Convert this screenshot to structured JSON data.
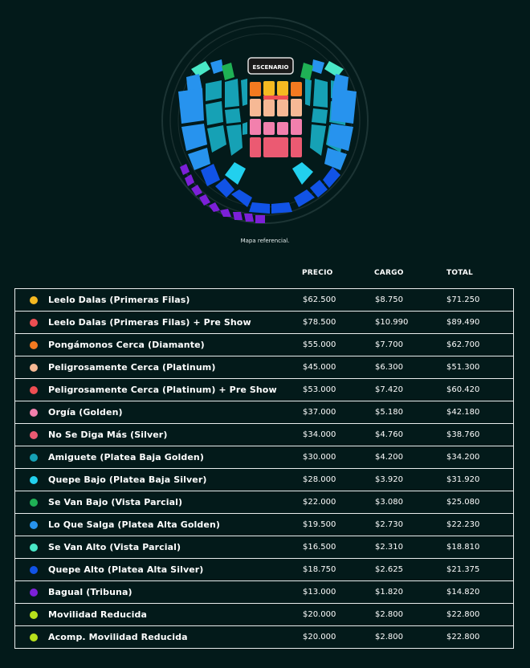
{
  "map": {
    "stage_label": "ESCENARIO",
    "caption": "Mapa referencial."
  },
  "table": {
    "headers": {
      "precio": "PRECIO",
      "cargo": "CARGO",
      "total": "TOTAL"
    },
    "rows": [
      {
        "name": "Leelo Dalas (Primeras Filas)",
        "precio": "$62.500",
        "cargo": "$8.750",
        "total": "$71.250",
        "color": "#f5b921"
      },
      {
        "name": "Leelo Dalas (Primeras Filas) + Pre Show",
        "precio": "$78.500",
        "cargo": "$10.990",
        "total": "$89.490",
        "color": "#ee4e52"
      },
      {
        "name": "Pongámonos Cerca (Diamante)",
        "precio": "$55.000",
        "cargo": "$7.700",
        "total": "$62.700",
        "color": "#f47a20"
      },
      {
        "name": "Peligrosamente Cerca (Platinum)",
        "precio": "$45.000",
        "cargo": "$6.300",
        "total": "$51.300",
        "color": "#f6b995"
      },
      {
        "name": "Peligrosamente Cerca (Platinum) + Pre Show",
        "precio": "$53.000",
        "cargo": "$7.420",
        "total": "$60.420",
        "color": "#ee4e52"
      },
      {
        "name": "Orgía (Golden)",
        "precio": "$37.000",
        "cargo": "$5.180",
        "total": "$42.180",
        "color": "#f280ad"
      },
      {
        "name": "No Se Diga Más (Silver)",
        "precio": "$34.000",
        "cargo": "$4.760",
        "total": "$38.760",
        "color": "#eb5a72"
      },
      {
        "name": "Amiguete (Platea Baja Golden)",
        "precio": "$30.000",
        "cargo": "$4.200",
        "total": "$34.200",
        "color": "#16a1b5"
      },
      {
        "name": "Quepe Bajo (Platea Baja Silver)",
        "precio": "$28.000",
        "cargo": "$3.920",
        "total": "$31.920",
        "color": "#22d0ee"
      },
      {
        "name": "Se Van Bajo (Vista Parcial)",
        "precio": "$22.000",
        "cargo": "$3.080",
        "total": "$25.080",
        "color": "#1fb155"
      },
      {
        "name": "Lo Que Salga (Platea Alta Golden)",
        "precio": "$19.500",
        "cargo": "$2.730",
        "total": "$22.230",
        "color": "#2793ee"
      },
      {
        "name": "Se Van Alto (Vista Parcial)",
        "precio": "$16.500",
        "cargo": "$2.310",
        "total": "$18.810",
        "color": "#49e8c7"
      },
      {
        "name": "Quepe Alto (Platea Alta Silver)",
        "precio": "$18.750",
        "cargo": "$2.625",
        "total": "$21.375",
        "color": "#1153e6"
      },
      {
        "name": "Bagual (Tribuna)",
        "precio": "$13.000",
        "cargo": "$1.820",
        "total": "$14.820",
        "color": "#7c20d8"
      },
      {
        "name": "Movilidad Reducida",
        "precio": "$20.000",
        "cargo": "$2.800",
        "total": "$22.800",
        "color": "#b8e11c"
      },
      {
        "name": "Acomp. Movilidad Reducida",
        "precio": "$20.000",
        "cargo": "$2.800",
        "total": "$22.800",
        "color": "#b8e11c"
      }
    ]
  }
}
